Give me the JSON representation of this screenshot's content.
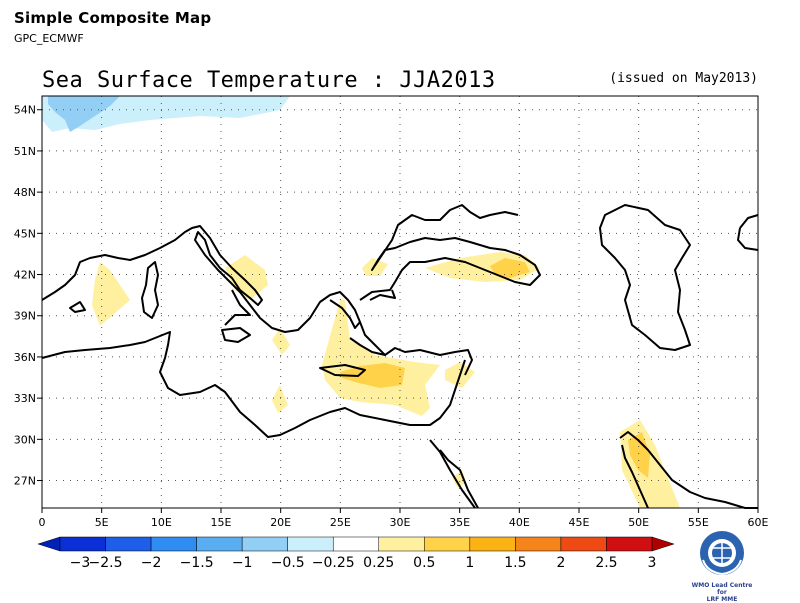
{
  "header": {
    "title": "Simple Composite Map",
    "subtitle": "GPC_ECMWF"
  },
  "map": {
    "title": "Sea Surface Temperature : JJA2013",
    "issued": "(issued on May2013)",
    "lon_range": [
      0,
      60
    ],
    "lat_range": [
      25,
      55
    ],
    "x_ticks": [
      "0",
      "5E",
      "10E",
      "15E",
      "20E",
      "25E",
      "30E",
      "35E",
      "40E",
      "45E",
      "50E",
      "55E",
      "60E"
    ],
    "y_ticks": [
      "27N",
      "30N",
      "33N",
      "36N",
      "39N",
      "42N",
      "45N",
      "48N",
      "51N",
      "54N"
    ],
    "grid": "dotted"
  },
  "colorbar": {
    "labels": [
      "−3",
      "−2.5",
      "−2",
      "−1.5",
      "−1",
      "−0.5",
      "−0.25",
      "0.25",
      "0.5",
      "1",
      "1.5",
      "2",
      "2.5",
      "3"
    ],
    "colors": [
      "#0a2fd4",
      "#1f5ee8",
      "#2f8cf0",
      "#58aef0",
      "#93cff5",
      "#ccf0fb",
      "#ffffff",
      "#fff0a0",
      "#ffd24a",
      "#fbb214",
      "#f5841a",
      "#ee4b14",
      "#cf0f12"
    ],
    "min_arrow_color": "#0022b8",
    "max_arrow_color": "#b00000"
  },
  "logo": {
    "icon": "wmo-emblem-icon",
    "text_line1": "WMO Lead Centre for",
    "text_line2": "LRF MME"
  }
}
